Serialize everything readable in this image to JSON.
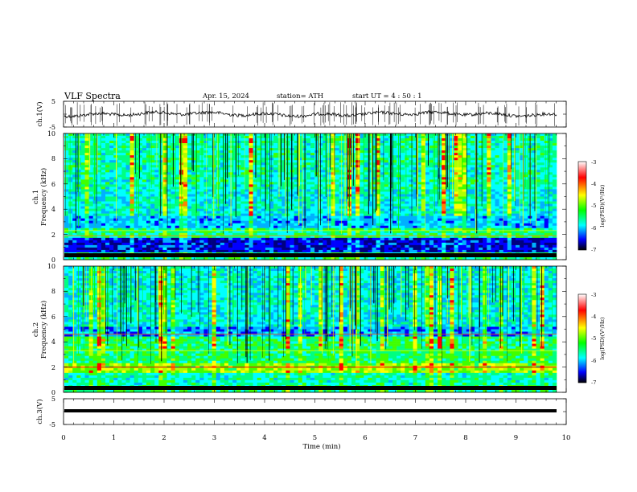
{
  "header": {
    "title": "VLF  Spectra",
    "date": "Apr. 15, 2024",
    "station": "station= ATH",
    "start_time": "start  UT  =   4  : 50 : 1"
  },
  "colorbar": {
    "label": "log(PSD)(V²/Hz)",
    "ticks": [
      "-3",
      "-4",
      "-5",
      "-6",
      "-7"
    ],
    "colors": [
      "#ffffff",
      "#ff0000",
      "#ffff00",
      "#00ff00",
      "#00ffff",
      "#0000ff",
      "#000000"
    ]
  },
  "chart_data": [
    {
      "type": "line",
      "title": "",
      "ylabel": "ch.1(V)",
      "ylim": [
        -5,
        5
      ],
      "yticks": [
        "5",
        "-5"
      ],
      "xlim": [
        0,
        10
      ],
      "description_series": [
        {
          "x": [
            0,
            1,
            2,
            3,
            4,
            5,
            6,
            7,
            8,
            9,
            9.8
          ],
          "y": [
            -0.5,
            -0.3,
            -0.2,
            -0.4,
            -0.6,
            -0.3,
            -0.2,
            -0.3,
            -0.4,
            -0.3,
            -0.3
          ]
        }
      ]
    },
    {
      "type": "heatmap",
      "ylabel": "ch.1\nFrequency  (kHz)",
      "ylim": [
        0,
        10
      ],
      "yticks": [
        "0",
        "2",
        "4",
        "6",
        "8",
        "10"
      ],
      "xlim": [
        0,
        10
      ],
      "colorbar_range": [
        -7,
        -3
      ]
    },
    {
      "type": "heatmap",
      "ylabel": "ch.2\nFrequency  (kHz)",
      "ylim": [
        0,
        10
      ],
      "yticks": [
        "0",
        "2",
        "4",
        "6",
        "8",
        "10"
      ],
      "xlim": [
        0,
        10
      ],
      "colorbar_range": [
        -7,
        -3
      ]
    },
    {
      "type": "line",
      "ylabel": "ch.3(V)",
      "ylim": [
        -5,
        5
      ],
      "yticks": [
        "5",
        "-5"
      ],
      "xlim": [
        0,
        10
      ],
      "xlabel": "Time  (min)",
      "xticks": [
        "0",
        "1",
        "2",
        "3",
        "4",
        "5",
        "6",
        "7",
        "8",
        "9",
        "10"
      ],
      "description_series": [
        {
          "x": [
            0,
            9.8
          ],
          "y": [
            0,
            0
          ]
        }
      ]
    }
  ]
}
